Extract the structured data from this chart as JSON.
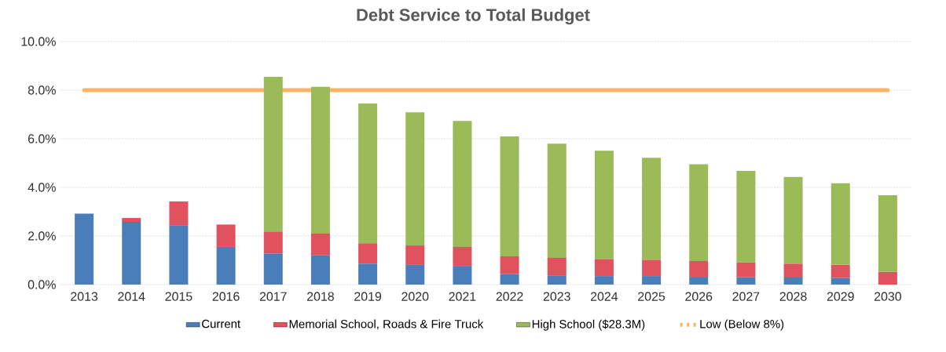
{
  "chart_data": {
    "type": "bar",
    "title": "Debt Service to Total Budget",
    "stacked": true,
    "categories": [
      "2013",
      "2014",
      "2015",
      "2016",
      "2017",
      "2018",
      "2019",
      "2020",
      "2021",
      "2022",
      "2023",
      "2024",
      "2025",
      "2026",
      "2027",
      "2028",
      "2029",
      "2030"
    ],
    "series": [
      {
        "name": "Current",
        "color": "#4a7ebb",
        "values": [
          2.92,
          2.58,
          2.44,
          1.55,
          1.27,
          1.2,
          0.86,
          0.81,
          0.77,
          0.43,
          0.38,
          0.35,
          0.35,
          0.32,
          0.3,
          0.29,
          0.27,
          0
        ]
      },
      {
        "name": "Memorial School, Roads & Fire Truck",
        "color": "#e0525e",
        "values": [
          0,
          0.16,
          0.98,
          0.92,
          0.91,
          0.9,
          0.84,
          0.8,
          0.78,
          0.73,
          0.72,
          0.7,
          0.67,
          0.65,
          0.61,
          0.57,
          0.54,
          0.52
        ]
      },
      {
        "name": "High School ($28.3M)",
        "color": "#9bbb59",
        "values": [
          0,
          0,
          0,
          0,
          6.37,
          6.04,
          5.75,
          5.48,
          5.18,
          4.94,
          4.7,
          4.46,
          4.2,
          3.98,
          3.77,
          3.57,
          3.36,
          3.16
        ]
      }
    ],
    "ref_lines": [
      {
        "axis": "y",
        "value": 8,
        "label": "Low (Below 8%)",
        "color": "#f9b467"
      }
    ],
    "ylim": [
      0,
      10
    ],
    "yticks": [
      {
        "value": 0,
        "label": "0.0%"
      },
      {
        "value": 2,
        "label": "2.0%"
      },
      {
        "value": 4,
        "label": "4.0%"
      },
      {
        "value": 6,
        "label": "6.0%"
      },
      {
        "value": 8,
        "label": "8.0%"
      },
      {
        "value": 10,
        "label": "10.0%"
      }
    ],
    "grid": "y",
    "legend": "bottom"
  }
}
